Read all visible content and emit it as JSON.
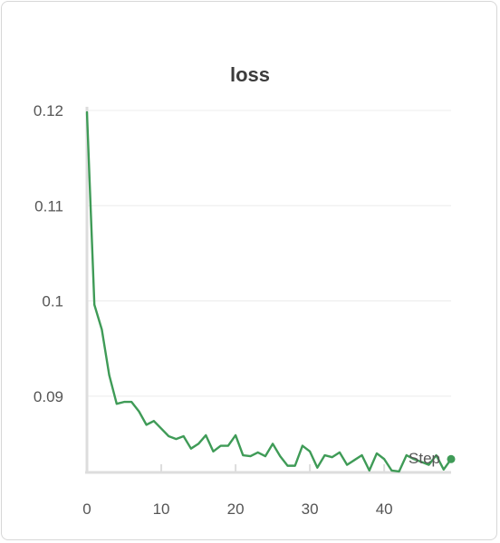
{
  "chart_data": {
    "type": "line",
    "title": "loss",
    "xlabel": "Step",
    "ylabel": "",
    "xlim": [
      0,
      49
    ],
    "ylim": [
      0.082,
      0.12
    ],
    "x_ticks": [
      0,
      10,
      20,
      30,
      40
    ],
    "y_ticks": [
      0.09,
      0.1,
      0.11,
      0.12
    ],
    "x_tick_labels": [
      "0",
      "10",
      "20",
      "30",
      "40"
    ],
    "y_tick_labels": [
      "0.09",
      "0.1",
      "0.11",
      "0.12"
    ],
    "grid": "horizontal",
    "series": [
      {
        "color": "#3f9b57",
        "x": [
          0,
          1,
          2,
          3,
          4,
          5,
          6,
          7,
          8,
          9,
          10,
          11,
          12,
          13,
          14,
          15,
          16,
          17,
          18,
          19,
          20,
          21,
          22,
          23,
          24,
          25,
          26,
          27,
          28,
          29,
          30,
          31,
          32,
          33,
          34,
          35,
          36,
          37,
          38,
          39,
          40,
          41,
          42,
          43,
          44,
          45,
          46,
          47,
          48,
          49
        ],
        "y": [
          0.1198,
          0.0996,
          0.097,
          0.0922,
          0.0892,
          0.0894,
          0.0894,
          0.0884,
          0.087,
          0.0874,
          0.0866,
          0.0858,
          0.0855,
          0.0858,
          0.0845,
          0.085,
          0.0859,
          0.0842,
          0.0848,
          0.0848,
          0.0859,
          0.0838,
          0.0837,
          0.0841,
          0.0837,
          0.085,
          0.0837,
          0.0827,
          0.0827,
          0.0848,
          0.0842,
          0.0825,
          0.0838,
          0.0836,
          0.0841,
          0.0828,
          0.0833,
          0.0838,
          0.0822,
          0.084,
          0.0834,
          0.0822,
          0.0821,
          0.0838,
          0.0834,
          0.0831,
          0.0828,
          0.0838,
          0.0823,
          0.0834
        ]
      }
    ]
  }
}
